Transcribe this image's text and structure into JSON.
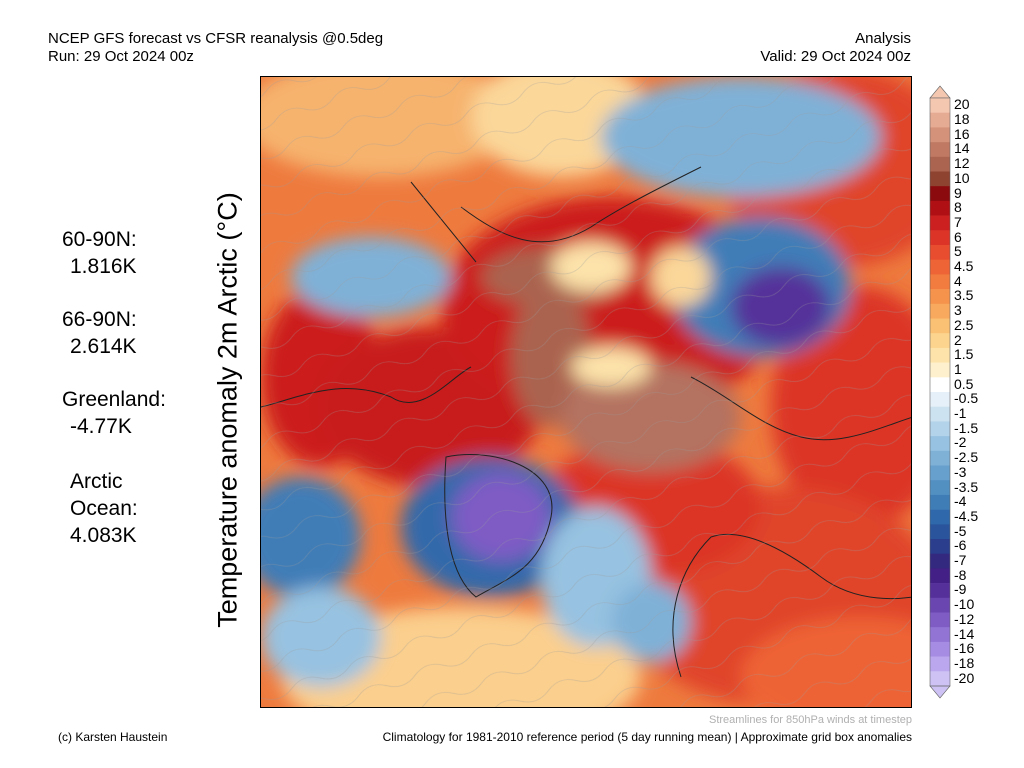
{
  "header": {
    "title_line1": "NCEP GFS forecast vs CFSR reanalysis @0.5deg",
    "title_line2": "Run: 29 Oct 2024 00z",
    "right_line1": "Analysis",
    "right_line2": "Valid: 29 Oct 2024 00z"
  },
  "map": {
    "ylabel": "Temperature anomaly 2m Arctic (°C)",
    "regions": [
      {
        "name_line1": "60-90N:",
        "value": "1.816K"
      },
      {
        "name_line1": "66-90N:",
        "value": "2.614K"
      },
      {
        "name_line1": "Greenland:",
        "value": "-4.77K"
      },
      {
        "name_line1": "Arctic",
        "name_line2": "Ocean:",
        "value": "4.083K"
      }
    ],
    "colorbar": {
      "labels": [
        "20",
        "18",
        "16",
        "14",
        "12",
        "10",
        "9",
        "8",
        "7",
        "6",
        "5",
        "4.5",
        "4",
        "3.5",
        "3",
        "2.5",
        "2",
        "1.5",
        "1",
        "0.5",
        "-0.5",
        "-1",
        "-1.5",
        "-2",
        "-2.5",
        "-3",
        "-3.5",
        "-4",
        "-4.5",
        "-5",
        "-6",
        "-7",
        "-8",
        "-9",
        "-10",
        "-12",
        "-14",
        "-16",
        "-18",
        "-20"
      ],
      "colors": [
        "#f4c7b0",
        "#e6ab93",
        "#d5927a",
        "#c07a63",
        "#aa6450",
        "#8e4330",
        "#8b0a0d",
        "#b00f14",
        "#cc1f1f",
        "#dc3528",
        "#e84d2f",
        "#ee6436",
        "#f27c3f",
        "#f5934c",
        "#f8a95d",
        "#fac073",
        "#fcd48e",
        "#fde3aa",
        "#fef0cd",
        "#ffffff",
        "#e6f0f8",
        "#cde2f1",
        "#b3d3ea",
        "#97c2e1",
        "#7fb1d7",
        "#67a0cc",
        "#5290c2",
        "#3f7db7",
        "#3069ab",
        "#2a559d",
        "#2b3e8e",
        "#33297f",
        "#422085",
        "#55309a",
        "#6a46b0",
        "#7e5cc4",
        "#9274d5",
        "#a68de3",
        "#baa7ed",
        "#cec2f5"
      ]
    }
  },
  "footer": {
    "streamlines_note": "Streamlines for 850hPa winds at timestep",
    "credit": "(c) Karsten Haustein",
    "climatology": "Climatology for 1981-2010 reference period (5 day running mean) | Approximate grid box anomalies"
  }
}
